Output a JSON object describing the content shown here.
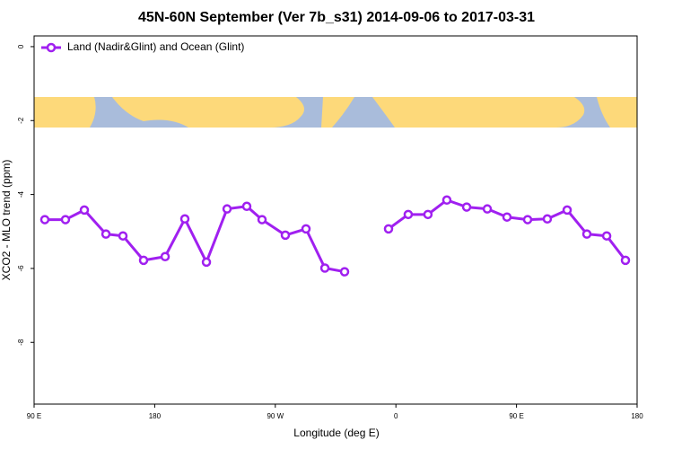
{
  "chart_data": {
    "type": "line",
    "title": "45N-60N September (Ver 7b_s31)   2014-09-06 to 2017-03-31",
    "xlabel": "Longitude (deg E)",
    "ylabel": "XCO2 - MLO trend (ppm)",
    "x": [
      98,
      113.4,
      127.5,
      143.6,
      156.3,
      171.7,
      187.8,
      202.5,
      218.6,
      234,
      248.7,
      260.1,
      277.5,
      292.9,
      307,
      321.7,
      338,
      354.5,
      369.2,
      383.9,
      398,
      412.8,
      428.2,
      442.9,
      458.3,
      473,
      487.8,
      502.5,
      517.3,
      531.3
    ],
    "series": [
      {
        "name": "Land (Nadir&Glint) and Ocean (Glint)",
        "color": "#a020f0",
        "values": [
          -4.68,
          -4.68,
          -4.42,
          -5.07,
          -5.12,
          -5.78,
          -5.68,
          -4.66,
          -5.83,
          -4.39,
          -4.32,
          -4.68,
          -5.1,
          -4.93,
          -5.99,
          -6.09,
          null,
          -4.93,
          -4.54,
          -4.54,
          -4.15,
          -4.34,
          -4.39,
          -4.61,
          -4.68,
          -4.66,
          -4.42,
          -5.07,
          -5.12,
          -5.78
        ]
      }
    ],
    "xlim": [
      90,
      540
    ],
    "xticks": [
      {
        "value": 90,
        "label": "90 E"
      },
      {
        "value": 180,
        "label": "180"
      },
      {
        "value": 270,
        "label": "90 W"
      },
      {
        "value": 360,
        "label": "0"
      },
      {
        "value": 450,
        "label": "90 E"
      },
      {
        "value": 540,
        "label": "180"
      }
    ],
    "ylim": [
      -9.67,
      0.29
    ],
    "yticks": [
      0,
      -2,
      -4,
      -6,
      -8
    ],
    "legend": "top-left"
  }
}
